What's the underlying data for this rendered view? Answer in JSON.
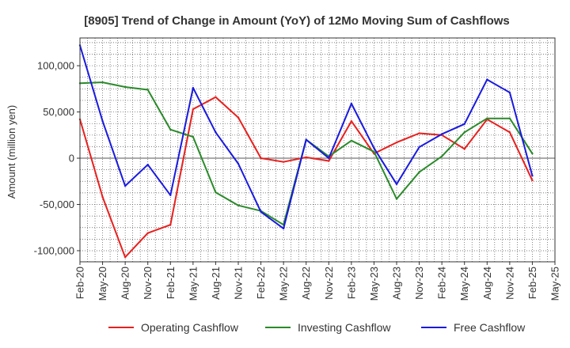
{
  "chart_data": {
    "type": "line",
    "title": "[8905]  Trend of Change in Amount (YoY) of 12Mo Moving Sum of Cashflows",
    "xlabel": "",
    "ylabel": "Amount (million yen)",
    "ylim": [
      -112000,
      130000
    ],
    "yticks": [
      100000,
      50000,
      0,
      -50000,
      -100000
    ],
    "ytick_labels": [
      "100,000",
      "50,000",
      "0",
      "-50,000",
      "-100,000"
    ],
    "categories": [
      "Feb-20",
      "May-20",
      "Aug-20",
      "Nov-20",
      "Feb-21",
      "May-21",
      "Aug-21",
      "Nov-21",
      "Feb-22",
      "May-22",
      "Aug-22",
      "Nov-22",
      "Feb-23",
      "May-23",
      "Aug-23",
      "Nov-23",
      "Feb-24",
      "May-24",
      "Aug-24",
      "Nov-24",
      "Feb-25",
      "May-25"
    ],
    "grid": true,
    "legend_position": "bottom",
    "series": [
      {
        "name": "Operating Cashflow",
        "color": "#e8201e",
        "values": [
          42000,
          -42000,
          -107000,
          -81000,
          -72000,
          53000,
          66000,
          44000,
          0,
          -4000,
          1000,
          -3000,
          40000,
          5000,
          17000,
          27000,
          25000,
          10000,
          42000,
          28000,
          -24000,
          null
        ]
      },
      {
        "name": "Investing Cashflow",
        "color": "#2a8a2a",
        "values": [
          81000,
          82000,
          77000,
          74000,
          31000,
          23000,
          -37000,
          -51000,
          -57000,
          -72000,
          20000,
          2000,
          19000,
          7000,
          -44000,
          -15000,
          2000,
          28000,
          43000,
          43000,
          5000,
          null
        ]
      },
      {
        "name": "Free Cashflow",
        "color": "#1a1adf",
        "values": [
          122000,
          40000,
          -30000,
          -7000,
          -40000,
          76000,
          28000,
          -6000,
          -58000,
          -76000,
          20000,
          0,
          59000,
          11000,
          -28000,
          12000,
          26000,
          37000,
          85000,
          71000,
          -19000,
          null
        ]
      }
    ]
  }
}
